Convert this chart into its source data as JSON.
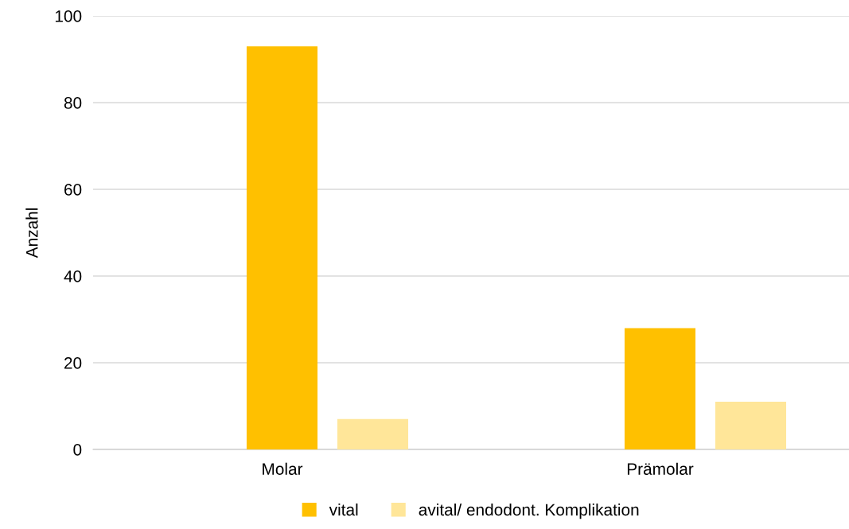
{
  "chart_data": {
    "type": "bar",
    "ylabel": "Anzahl",
    "categories": [
      "Molar",
      "Prämolar"
    ],
    "series": [
      {
        "name": "vital",
        "color": "#ffc000",
        "values": [
          93,
          28
        ]
      },
      {
        "name": "avital/ endodont. Komplikation",
        "color": "#ffe699",
        "values": [
          7,
          11
        ]
      }
    ],
    "ylim": [
      0,
      100
    ],
    "yticks": [
      0,
      20,
      40,
      60,
      80,
      100
    ],
    "grid": "y",
    "legend": "bottom"
  }
}
